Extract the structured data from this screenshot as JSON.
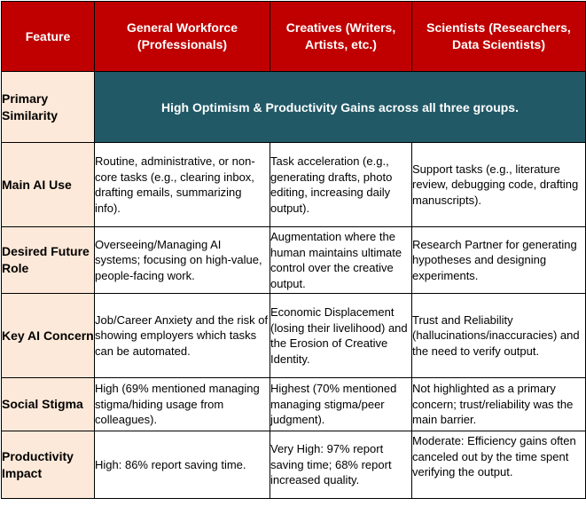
{
  "header": {
    "feature": "Feature",
    "general": "General Workforce (Professionals)",
    "creatives": "Creatives (Writers, Artists, etc.)",
    "scientists": "Scientists (Researchers, Data Scientists)"
  },
  "rows": [
    {
      "feature": "Primary Similarity",
      "banner": "High Optimism & Productivity Gains across all three groups."
    },
    {
      "feature": "Main AI Use",
      "general": "Routine, administrative, or non-core tasks (e.g., clearing inbox, drafting emails, summarizing info).",
      "creatives": "Task acceleration (e.g., generating drafts, photo editing, increasing daily output).",
      "scientists": "Support tasks (e.g., literature review, debugging code, drafting manuscripts)."
    },
    {
      "feature": "Desired Future Role",
      "general": "Overseeing/Managing AI systems; focusing on high-value, people-facing work.",
      "creatives": "Augmentation where the human maintains ultimate control over the creative output.",
      "scientists": "Research Partner for generating hypotheses and designing experiments."
    },
    {
      "feature": "Key AI Concern",
      "general": "Job/Career Anxiety and the risk of showing employers which tasks can be automated.",
      "creatives": "Economic Displacement (losing their livelihood) and the Erosion of Creative Identity.",
      "scientists": "Trust and Reliability (hallucinations/inaccuracies) and the need to verify output."
    },
    {
      "feature": "Social Stigma",
      "general": "High (69% mentioned managing stigma/hiding usage from colleagues).",
      "creatives": "Highest (70% mentioned managing stigma/peer judgment).",
      "scientists": "Not highlighted as a primary concern; trust/reliability was the main barrier."
    },
    {
      "feature": "Productivity Impact",
      "general": "High: 86% report saving time.",
      "creatives": "Very High: 97% report saving time; 68% report increased quality.",
      "scientists": "Moderate: Efficiency gains often canceled out by the time spent verifying the output."
    }
  ]
}
